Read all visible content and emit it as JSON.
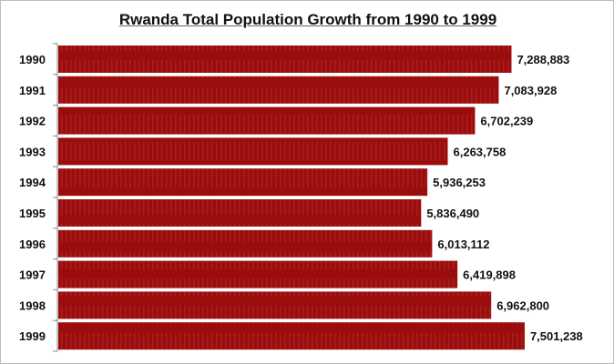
{
  "chart_data": {
    "type": "bar",
    "orientation": "horizontal",
    "title": "Rwanda Total Population Growth from 1990 to 1999",
    "categories": [
      "1990",
      "1991",
      "1992",
      "1993",
      "1994",
      "1995",
      "1996",
      "1997",
      "1998",
      "1999"
    ],
    "values": [
      7288883,
      7083928,
      6702239,
      6263758,
      5936253,
      5836490,
      6013112,
      6419898,
      6962800,
      7501238
    ],
    "data_labels": [
      "7,288,883",
      "7,083,928",
      "6,702,239",
      "6,263,758",
      "5,936,253",
      "5,836,490",
      "6,013,112",
      "6,419,898",
      "6,962,800",
      "7,501,238"
    ],
    "xlabel": "",
    "ylabel": "",
    "xlim": [
      0,
      8000000
    ],
    "grid": false,
    "legend": "none",
    "bar_color": "#9b0d0d"
  }
}
